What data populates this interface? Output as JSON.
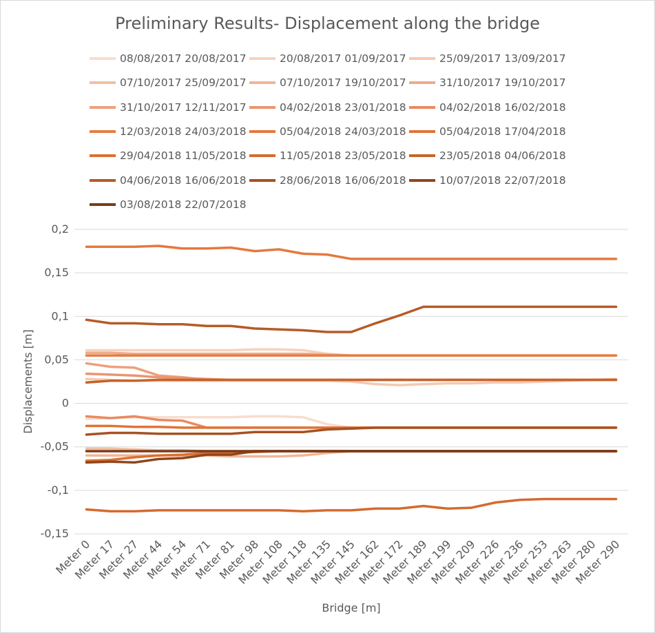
{
  "chart_data": {
    "type": "line",
    "title": "Preliminary  Results- Displacement along the bridge",
    "xlabel": "Bridge [m]",
    "ylabel": "Displacements [m]",
    "ylim": [
      -0.15,
      0.2
    ],
    "ytick_labels": [
      "0,2",
      "0,15",
      "0,1",
      "0,05",
      "0",
      "-0,05",
      "-0,1",
      "-0,15"
    ],
    "grid": true,
    "legend_position": "top",
    "categories": [
      "Meter 0",
      "Meter 17",
      "Meter 27",
      "Meter 44",
      "Meter 54",
      "Meter 71",
      "Meter 81",
      "Meter 98",
      "Meter 108",
      "Meter 118",
      "Meter 135",
      "Meter 145",
      "Meter 162",
      "Meter 172",
      "Meter 189",
      "Meter 199",
      "Meter 209",
      "Meter 226",
      "Meter 236",
      "Meter 253",
      "Meter 263",
      "Meter 280",
      "Meter 290"
    ],
    "series": [
      {
        "name": "08/08/2017 20/08/2017",
        "color": "#f8dccd",
        "values": [
          -0.018,
          -0.017,
          -0.016,
          -0.016,
          -0.016,
          -0.016,
          -0.016,
          -0.015,
          -0.015,
          -0.016,
          -0.024,
          -0.028,
          -0.028,
          -0.028,
          -0.028,
          -0.028,
          -0.028,
          -0.028,
          -0.028,
          -0.028,
          -0.028,
          -0.028,
          -0.028
        ]
      },
      {
        "name": "20/08/2017 01/09/2017",
        "color": "#f6d2be",
        "values": [
          0.061,
          0.061,
          0.061,
          0.061,
          0.061,
          0.061,
          0.061,
          0.062,
          0.062,
          0.061,
          0.057,
          0.055,
          0.055,
          0.055,
          0.055,
          0.055,
          0.055,
          0.055,
          0.055,
          0.055,
          0.055,
          0.055,
          0.055
        ]
      },
      {
        "name": "25/09/2017 13/09/2017",
        "color": "#f4c9b1",
        "values": [
          0.028,
          0.027,
          0.026,
          0.026,
          0.026,
          0.026,
          0.026,
          0.026,
          0.026,
          0.026,
          0.026,
          0.025,
          0.022,
          0.021,
          0.022,
          0.023,
          0.023,
          0.024,
          0.024,
          0.025,
          0.026,
          0.027,
          0.028
        ]
      },
      {
        "name": "07/10/2017 25/09/2017",
        "color": "#f2c0a4",
        "values": [
          -0.052,
          -0.052,
          -0.053,
          -0.054,
          -0.054,
          -0.055,
          -0.055,
          -0.055,
          -0.055,
          -0.055,
          -0.055,
          -0.055,
          -0.055,
          -0.055,
          -0.055,
          -0.055,
          -0.055,
          -0.055,
          -0.055,
          -0.055,
          -0.055,
          -0.055,
          -0.055
        ]
      },
      {
        "name": "07/10/2017 19/10/2017",
        "color": "#f0b698",
        "values": [
          -0.06,
          -0.06,
          -0.06,
          -0.06,
          -0.06,
          -0.06,
          -0.061,
          -0.061,
          -0.061,
          -0.06,
          -0.057,
          -0.055,
          -0.055,
          -0.055,
          -0.055,
          -0.055,
          -0.055,
          -0.055,
          -0.055,
          -0.055,
          -0.055,
          -0.055,
          -0.055
        ]
      },
      {
        "name": "31/10/2017 19/10/2017",
        "color": "#eeab8b",
        "values": [
          0.058,
          0.058,
          0.057,
          0.057,
          0.057,
          0.057,
          0.057,
          0.057,
          0.057,
          0.057,
          0.056,
          0.055,
          0.055,
          0.055,
          0.055,
          0.055,
          0.055,
          0.055,
          0.055,
          0.055,
          0.055,
          0.055,
          0.055
        ]
      },
      {
        "name": "31/10/2017 12/11/2017",
        "color": "#eca07d",
        "values": [
          0.046,
          0.042,
          0.041,
          0.032,
          0.03,
          0.027,
          0.027,
          0.027,
          0.027,
          0.027,
          0.027,
          0.027,
          0.027,
          0.027,
          0.027,
          0.027,
          0.027,
          0.027,
          0.027,
          0.027,
          0.027,
          0.027,
          0.027
        ]
      },
      {
        "name": "04/02/2018 23/01/2018",
        "color": "#ea9570",
        "values": [
          0.034,
          0.033,
          0.032,
          0.03,
          0.029,
          0.028,
          0.027,
          0.027,
          0.027,
          0.027,
          0.027,
          0.027,
          0.027,
          0.027,
          0.027,
          0.027,
          0.027,
          0.027,
          0.027,
          0.027,
          0.027,
          0.027,
          0.027
        ]
      },
      {
        "name": "04/02/2018 16/02/2018",
        "color": "#e98a60",
        "values": [
          -0.015,
          -0.017,
          -0.015,
          -0.019,
          -0.02,
          -0.028,
          -0.028,
          -0.028,
          -0.028,
          -0.028,
          -0.028,
          -0.028,
          -0.028,
          -0.028,
          -0.028,
          -0.028,
          -0.028,
          -0.028,
          -0.028,
          -0.028,
          -0.028,
          -0.028,
          -0.028
        ]
      },
      {
        "name": "12/03/2018 24/03/2018",
        "color": "#e77c43",
        "values": [
          0.055,
          0.055,
          0.055,
          0.055,
          0.055,
          0.055,
          0.055,
          0.055,
          0.055,
          0.055,
          0.055,
          0.055,
          0.055,
          0.055,
          0.055,
          0.055,
          0.055,
          0.055,
          0.055,
          0.055,
          0.055,
          0.055,
          0.055
        ]
      },
      {
        "name": "05/04/2018 24/03/2018",
        "color": "#e5783d",
        "values": [
          0.18,
          0.18,
          0.18,
          0.181,
          0.178,
          0.178,
          0.179,
          0.175,
          0.177,
          0.172,
          0.171,
          0.166,
          0.166,
          0.166,
          0.166,
          0.166,
          0.166,
          0.166,
          0.166,
          0.166,
          0.166,
          0.166,
          0.166
        ]
      },
      {
        "name": "05/04/2018 17/04/2018",
        "color": "#e07437",
        "values": [
          -0.026,
          -0.026,
          -0.027,
          -0.027,
          -0.028,
          -0.028,
          -0.028,
          -0.028,
          -0.028,
          -0.028,
          -0.028,
          -0.028,
          -0.028,
          -0.028,
          -0.028,
          -0.028,
          -0.028,
          -0.028,
          -0.028,
          -0.028,
          -0.028,
          -0.028,
          -0.028
        ]
      },
      {
        "name": "29/04/2018 11/05/2018",
        "color": "#da7032",
        "values": [
          -0.066,
          -0.065,
          -0.062,
          -0.06,
          -0.059,
          -0.057,
          -0.057,
          -0.056,
          -0.055,
          -0.055,
          -0.055,
          -0.055,
          -0.055,
          -0.055,
          -0.055,
          -0.055,
          -0.055,
          -0.055,
          -0.055,
          -0.055,
          -0.055,
          -0.055,
          -0.055
        ]
      },
      {
        "name": "11/05/2018 23/05/2018",
        "color": "#d46a2e",
        "values": [
          -0.122,
          -0.124,
          -0.124,
          -0.123,
          -0.123,
          -0.123,
          -0.123,
          -0.123,
          -0.123,
          -0.124,
          -0.123,
          -0.123,
          -0.121,
          -0.121,
          -0.118,
          -0.121,
          -0.12,
          -0.114,
          -0.111,
          -0.11,
          -0.11,
          -0.11,
          -0.11
        ]
      },
      {
        "name": "23/05/2018 04/06/2018",
        "color": "#c6632a",
        "values": [
          0.024,
          0.026,
          0.026,
          0.027,
          0.027,
          0.027,
          0.027,
          0.027,
          0.027,
          0.027,
          0.027,
          0.027,
          0.027,
          0.027,
          0.027,
          0.027,
          0.027,
          0.027,
          0.027,
          0.027,
          0.027,
          0.027,
          0.027
        ]
      },
      {
        "name": "04/06/2018 16/06/2018",
        "color": "#b65a26",
        "values": [
          0.096,
          0.092,
          0.092,
          0.091,
          0.091,
          0.089,
          0.089,
          0.086,
          0.085,
          0.084,
          0.082,
          0.082,
          0.092,
          0.101,
          0.111,
          0.111,
          0.111,
          0.111,
          0.111,
          0.111,
          0.111,
          0.111,
          0.111
        ]
      },
      {
        "name": "28/06/2018 16/06/2018",
        "color": "#a65222",
        "values": [
          -0.036,
          -0.034,
          -0.034,
          -0.035,
          -0.035,
          -0.035,
          -0.035,
          -0.033,
          -0.033,
          -0.033,
          -0.03,
          -0.029,
          -0.028,
          -0.028,
          -0.028,
          -0.028,
          -0.028,
          -0.028,
          -0.028,
          -0.028,
          -0.028,
          -0.028,
          -0.028
        ]
      },
      {
        "name": "10/07/2018 22/07/2018",
        "color": "#8f461d",
        "values": [
          -0.068,
          -0.067,
          -0.068,
          -0.064,
          -0.063,
          -0.059,
          -0.059,
          -0.055,
          -0.055,
          -0.055,
          -0.055,
          -0.055,
          -0.055,
          -0.055,
          -0.055,
          -0.055,
          -0.055,
          -0.055,
          -0.055,
          -0.055,
          -0.055,
          -0.055,
          -0.055
        ]
      },
      {
        "name": "03/08/2018 22/07/2018",
        "color": "#7a3b18",
        "values": [
          -0.055,
          -0.055,
          -0.055,
          -0.055,
          -0.055,
          -0.055,
          -0.055,
          -0.055,
          -0.055,
          -0.055,
          -0.055,
          -0.055,
          -0.055,
          -0.055,
          -0.055,
          -0.055,
          -0.055,
          -0.055,
          -0.055,
          -0.055,
          -0.055,
          -0.055,
          -0.055
        ]
      }
    ]
  }
}
